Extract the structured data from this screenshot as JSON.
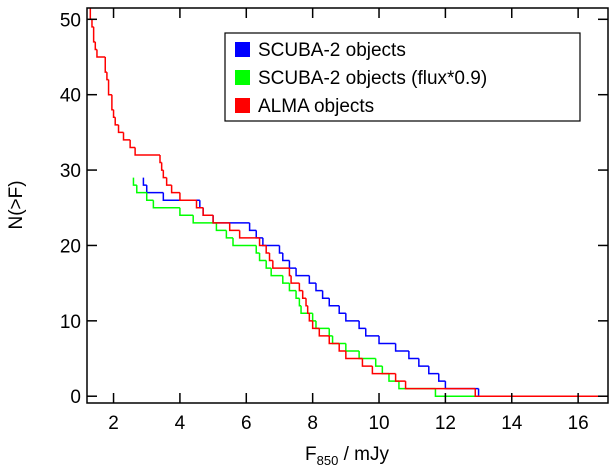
{
  "chart_data": {
    "type": "step",
    "xlabel": {
      "main": "F",
      "sub": "850",
      "rest": " / mJy"
    },
    "ylabel": "N(>F)",
    "xlim": [
      1.2,
      16.9
    ],
    "ylim": [
      -0.9,
      51.5
    ],
    "xticks": [
      2,
      4,
      6,
      8,
      10,
      12,
      14,
      16
    ],
    "yticks": [
      0,
      10,
      20,
      30,
      40,
      50
    ],
    "legend": "upper right",
    "series": [
      {
        "name": "SCUBA-2 objects",
        "color": "#0000ff",
        "x": [
          2.9,
          2.9,
          3.0,
          3.5,
          4.6,
          4.7,
          5.0,
          6.1,
          6.3,
          6.5,
          7.0,
          7.1,
          7.3,
          7.5,
          7.9,
          8.1,
          8.3,
          8.5,
          8.8,
          9.0,
          9.4,
          9.6,
          10.0,
          10.5,
          10.9,
          11.2,
          11.5,
          11.8,
          12.0,
          13.0
        ],
        "values": [
          29,
          28,
          27,
          26,
          25,
          24,
          23,
          22,
          21,
          20,
          19,
          18,
          17,
          16,
          15,
          14,
          13,
          12,
          11,
          10,
          9,
          8,
          7,
          6,
          5,
          4,
          3,
          2,
          1,
          0
        ]
      },
      {
        "name": "SCUBA-2 objects (flux*0.9)",
        "color": "#00ff00",
        "x": [
          2.6,
          2.6,
          2.7,
          3.0,
          3.2,
          4.0,
          4.4,
          5.1,
          5.4,
          5.6,
          6.3,
          6.4,
          6.6,
          6.75,
          7.1,
          7.3,
          7.5,
          7.6,
          7.65,
          8.0,
          8.1,
          8.5,
          8.6,
          9.0,
          9.4,
          9.9,
          10.1,
          10.3,
          10.6,
          11.7
        ],
        "values": [
          29,
          28,
          27,
          26,
          25,
          24,
          23,
          22,
          21,
          20,
          19,
          18,
          17,
          16,
          15,
          14,
          13,
          12,
          11,
          10,
          9,
          8,
          7,
          6,
          5,
          4,
          3,
          2,
          1,
          0
        ]
      },
      {
        "name": "ALMA objects",
        "color": "#ff0000",
        "x": [
          1.2,
          1.3,
          1.35,
          1.4,
          1.45,
          1.5,
          1.75,
          1.8,
          1.85,
          1.95,
          2.0,
          2.05,
          2.15,
          2.3,
          2.5,
          2.65,
          3.4,
          3.45,
          3.5,
          3.6,
          3.75,
          4.0,
          4.5,
          4.7,
          5.0,
          5.5,
          5.8,
          6.4,
          6.6,
          6.7,
          6.8,
          7.3,
          7.35,
          7.6,
          7.7,
          7.8,
          7.85,
          7.9,
          8.0,
          8.2,
          8.5,
          8.8,
          9.0,
          9.5,
          9.8,
          10.5,
          10.8,
          12.9
        ],
        "values": [
          52,
          50,
          49,
          47,
          46,
          45,
          43,
          42,
          40,
          38,
          37,
          36,
          35,
          34,
          33,
          32,
          31,
          30,
          29,
          28,
          27,
          26,
          25,
          24,
          23,
          22,
          21,
          20,
          19,
          18,
          17,
          16,
          15,
          14,
          13,
          12,
          11,
          10,
          9,
          8,
          7,
          6,
          5,
          4,
          3,
          2,
          1,
          0
        ]
      }
    ]
  }
}
